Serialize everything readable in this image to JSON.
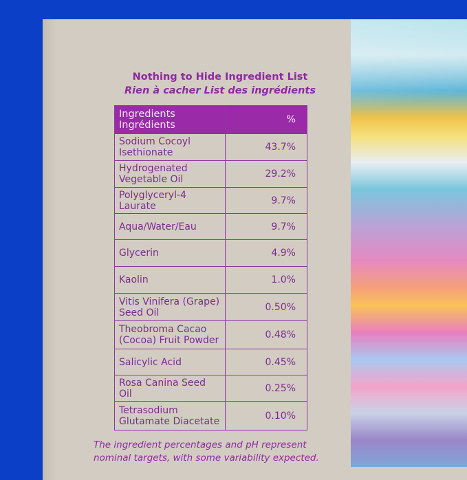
{
  "title_en": "Nothing to Hide Ingredient List",
  "title_fr": "Rien à cacher List des ingrédients",
  "table": {
    "header": {
      "ingredients": [
        "Ingredients",
        "Ingrédients"
      ],
      "percent": "%"
    },
    "rows": [
      {
        "name": [
          "Sodium Cocoyl",
          "Isethionate"
        ],
        "pct": "43.7%"
      },
      {
        "name": [
          "Hydrogenated",
          "Vegetable Oil"
        ],
        "pct": "29.2%"
      },
      {
        "name": [
          "Polyglyceryl-4 Laurate"
        ],
        "pct": "9.7%"
      },
      {
        "name": [
          "Aqua/Water/Eau"
        ],
        "pct": "9.7%"
      },
      {
        "name": [
          "Glycerin"
        ],
        "pct": "4.9%"
      },
      {
        "name": [
          "Kaolin"
        ],
        "pct": "1.0%"
      },
      {
        "name": [
          "Vitis Vinifera (Grape)",
          "Seed Oil"
        ],
        "pct": "0.50%"
      },
      {
        "name": [
          "Theobroma Cacao",
          "(Cocoa) Fruit Powder"
        ],
        "pct": "0.48%"
      },
      {
        "name": [
          "Salicylic Acid"
        ],
        "pct": "0.45%"
      },
      {
        "name": [
          "Rosa Canina Seed Oil"
        ],
        "pct": "0.25%"
      },
      {
        "name": [
          "Tetrasodium",
          "Glutamate Diacetate"
        ],
        "pct": "0.10%"
      }
    ]
  },
  "note": [
    "The ingredient percentages and pH represent",
    "nominal targets, with some variability expected."
  ],
  "colors": {
    "background": "#0b3fc8",
    "box": "#d3ccc2",
    "accent": "#9a2aa8"
  }
}
